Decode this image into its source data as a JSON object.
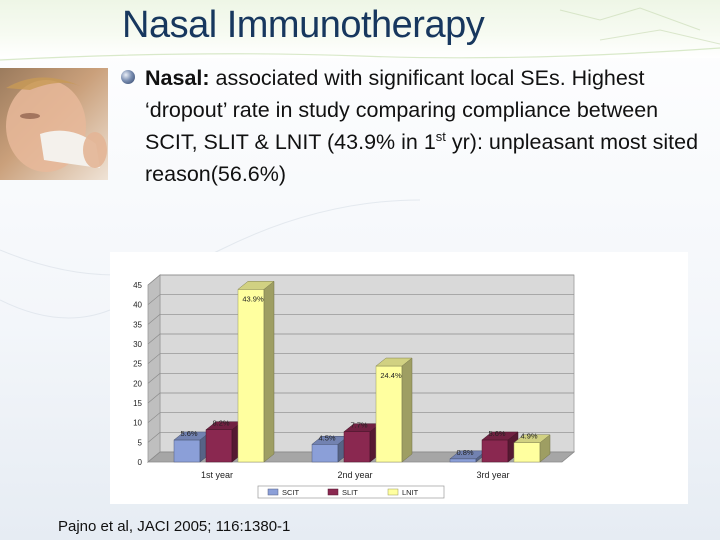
{
  "slide": {
    "title": "Nasal Immunotherapy",
    "bullet_lead": "Nasal:",
    "bullet_rest_1": " associated with significant local SEs. Highest ‘dropout’ rate in study comparing compliance between SCIT, SLIT & LNIT (43.9% in 1",
    "bullet_sup": "st",
    "bullet_rest_2": " yr): unpleasant most sited reason(56.6%)",
    "citation": "Pajno et al, JACI 2005; 116:1380-1",
    "accent_color": "#17375e",
    "photo_icon": "child-blowing-nose-photo"
  },
  "chart_data": {
    "type": "bar",
    "categories": [
      "1st year",
      "2nd year",
      "3rd year"
    ],
    "series": [
      {
        "name": "SCIT",
        "values": [
          5.6,
          4.5,
          0.8
        ],
        "labels": [
          "5.6%",
          "4.5%",
          "0.8%"
        ],
        "color": "#8b9fd8"
      },
      {
        "name": "SLIT",
        "values": [
          8.2,
          7.7,
          5.6
        ],
        "labels": [
          "8.2%",
          "7.7%",
          "5.6%"
        ],
        "color": "#8a2850"
      },
      {
        "name": "LNIT",
        "values": [
          43.9,
          24.4,
          4.9
        ],
        "labels": [
          "43.9%",
          "24.4%",
          "4.9%"
        ],
        "color": "#ffff9f"
      }
    ],
    "yticks": [
      "0",
      "5",
      "10",
      "15",
      "20",
      "25",
      "30",
      "35",
      "40",
      "45"
    ],
    "ylim": [
      0,
      45
    ],
    "grid": true,
    "legend_position": "bottom",
    "three_d": true
  }
}
